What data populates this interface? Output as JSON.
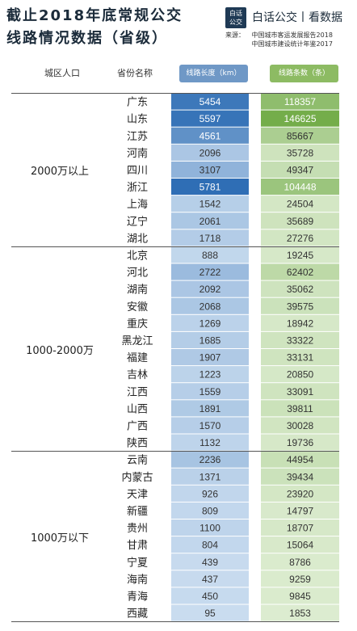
{
  "title": {
    "line1": "截止2018年底常规公交",
    "line2": "线路情况数据（省级）"
  },
  "logo": {
    "line1": "白话",
    "line2": "公交"
  },
  "brand": "白话公交丨看数据",
  "source": {
    "label": "来源：",
    "lines": [
      "中国城市客运发展报告2018",
      "中国城市建设统计年鉴2017"
    ]
  },
  "headers": {
    "region": "城区人口",
    "province": "省份名称",
    "length": "线路长度（km）",
    "count": "线路条数（条）"
  },
  "colors": {
    "blue_low": "#c9dcef",
    "blue_high": "#2f6eb5",
    "green_low": "#dcecd0",
    "green_high": "#74ad4a"
  },
  "chart_data": {
    "type": "table",
    "columns": [
      "城区人口",
      "省份名称",
      "线路长度（km）",
      "线路条数（条）"
    ],
    "groups": [
      {
        "label": "2000万以上",
        "rows": [
          {
            "province": "广东",
            "length": 5454,
            "count": 118357
          },
          {
            "province": "山东",
            "length": 5597,
            "count": 146625
          },
          {
            "province": "江苏",
            "length": 4561,
            "count": 85667
          },
          {
            "province": "河南",
            "length": 2096,
            "count": 35728
          },
          {
            "province": "四川",
            "length": 3107,
            "count": 49347
          },
          {
            "province": "浙江",
            "length": 5781,
            "count": 104448
          },
          {
            "province": "上海",
            "length": 1542,
            "count": 24504
          },
          {
            "province": "辽宁",
            "length": 2061,
            "count": 35689
          },
          {
            "province": "湖北",
            "length": 1718,
            "count": 27276
          }
        ]
      },
      {
        "label": "1000-2000万",
        "rows": [
          {
            "province": "北京",
            "length": 888,
            "count": 19245
          },
          {
            "province": "河北",
            "length": 2722,
            "count": 62402
          },
          {
            "province": "湖南",
            "length": 2092,
            "count": 35062
          },
          {
            "province": "安徽",
            "length": 2068,
            "count": 39575
          },
          {
            "province": "重庆",
            "length": 1269,
            "count": 18942
          },
          {
            "province": "黑龙江",
            "length": 1685,
            "count": 33322
          },
          {
            "province": "福建",
            "length": 1907,
            "count": 33131
          },
          {
            "province": "吉林",
            "length": 1223,
            "count": 20850
          },
          {
            "province": "江西",
            "length": 1559,
            "count": 33091
          },
          {
            "province": "山西",
            "length": 1891,
            "count": 39811
          },
          {
            "province": "广西",
            "length": 1570,
            "count": 30028
          },
          {
            "province": "陕西",
            "length": 1132,
            "count": 19736
          }
        ]
      },
      {
        "label": "1000万以下",
        "rows": [
          {
            "province": "云南",
            "length": 2236,
            "count": 44954
          },
          {
            "province": "内蒙古",
            "length": 1371,
            "count": 39434
          },
          {
            "province": "天津",
            "length": 926,
            "count": 23920
          },
          {
            "province": "新疆",
            "length": 809,
            "count": 14797
          },
          {
            "province": "贵州",
            "length": 1100,
            "count": 18707
          },
          {
            "province": "甘肃",
            "length": 804,
            "count": 15064
          },
          {
            "province": "宁夏",
            "length": 439,
            "count": 8786
          },
          {
            "province": "海南",
            "length": 437,
            "count": 9259
          },
          {
            "province": "青海",
            "length": 450,
            "count": 9845
          },
          {
            "province": "西藏",
            "length": 95,
            "count": 1853
          }
        ]
      }
    ]
  }
}
